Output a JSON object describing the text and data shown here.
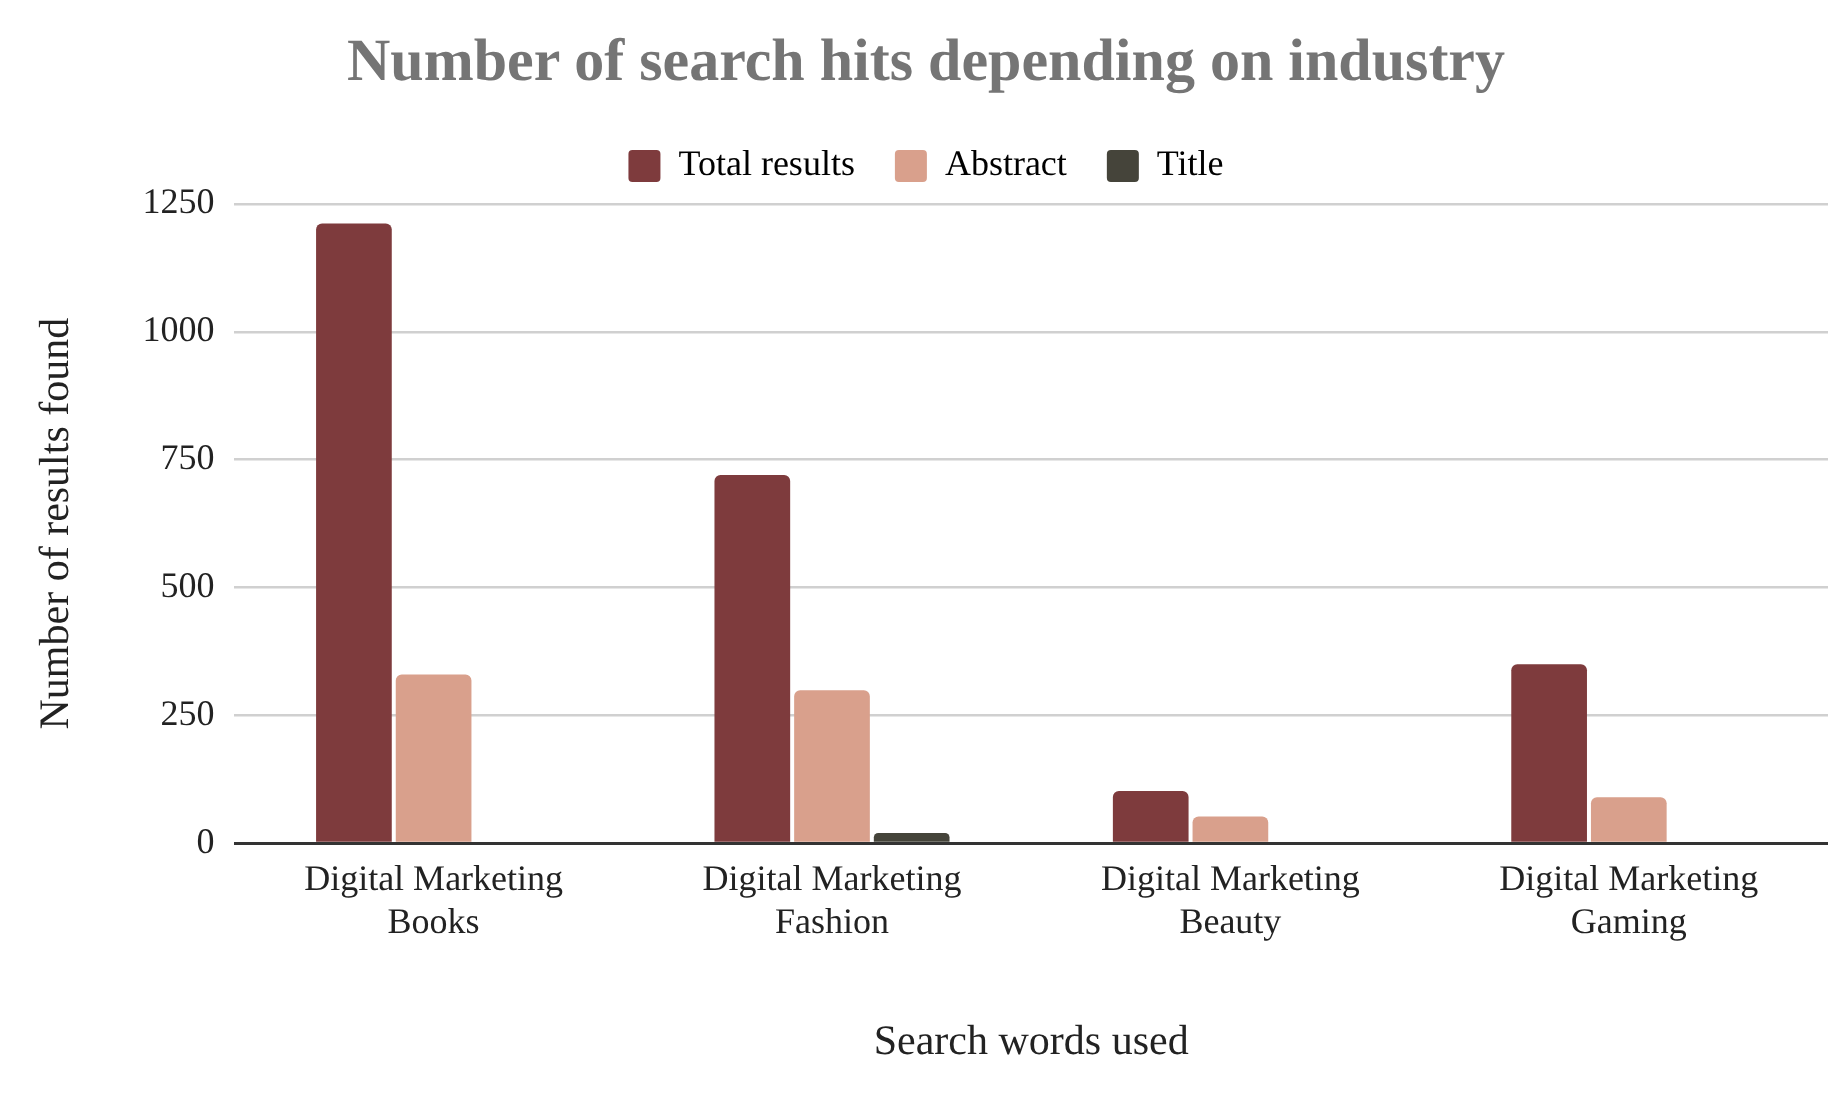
{
  "chart_data": {
    "type": "bar",
    "title": "Number of search hits depending on industry",
    "xlabel": "Search words used",
    "ylabel": "Number of results found",
    "categories": [
      "Digital Marketing Books",
      "Digital Marketing Fashion",
      "Digital Marketing Beauty",
      "Digital Marketing Gaming"
    ],
    "series": [
      {
        "name": "Total results",
        "color": "#7e3b3d",
        "values": [
          1212,
          720,
          102,
          350
        ]
      },
      {
        "name": "Abstract",
        "color": "#d9a08c",
        "values": [
          330,
          299,
          52,
          90
        ]
      },
      {
        "name": "Title",
        "color": "#45443a",
        "values": [
          0,
          20,
          0,
          0
        ]
      }
    ],
    "ylim": [
      0,
      1250
    ],
    "yticks": [
      0,
      250,
      500,
      750,
      1000,
      1250
    ],
    "grid": "y",
    "legend": "top"
  }
}
